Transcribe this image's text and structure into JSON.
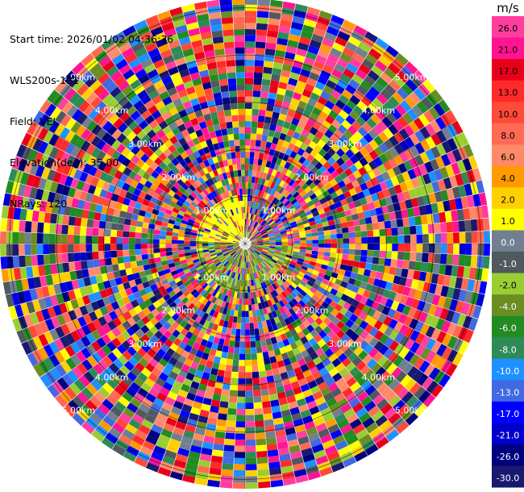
{
  "header": {
    "start_time": "Start time: 2026/01/02 04:36:36",
    "instrument": "WLS200s-181",
    "field": "Field: VEL",
    "elevation": "Elevation(deg): 35.00",
    "nrays": "NRays: 120"
  },
  "colorbar": {
    "title": "m/s",
    "ticks": [
      "26.0",
      "21.0",
      "17.0",
      "13.0",
      "10.0",
      "8.0",
      "6.0",
      "4.0",
      "2.0",
      "1.0",
      "0.0",
      "-1.0",
      "-2.0",
      "-4.0",
      "-6.0",
      "-8.0",
      "-10.0",
      "-13.0",
      "-17.0",
      "-21.0",
      "-26.0",
      "-30.0"
    ],
    "colors": [
      "#ff3ea0",
      "#ff1493",
      "#e8001a",
      "#ff2a2a",
      "#ff4a3a",
      "#ff6a55",
      "#ff8a6a",
      "#ff9a00",
      "#ffd000",
      "#ffff00",
      "#708090",
      "#505860",
      "#9acd32",
      "#6b8e23",
      "#228b22",
      "#2e8b57",
      "#1e90ff",
      "#4169e1",
      "#0000ff",
      "#0000cd",
      "#000080",
      "#191970"
    ]
  },
  "chart_data": {
    "type": "heatmap",
    "projection": "polar PPI",
    "field": "VEL",
    "units": "m/s",
    "elevation_deg": 35.0,
    "n_rays": 120,
    "range_rings_km": [
      1,
      2,
      3,
      4,
      5
    ],
    "ring_label_text": [
      "1.00km",
      "2.00km",
      "3.00km",
      "4.00km",
      "5.00km"
    ],
    "value_range": [
      -30,
      30
    ]
  }
}
